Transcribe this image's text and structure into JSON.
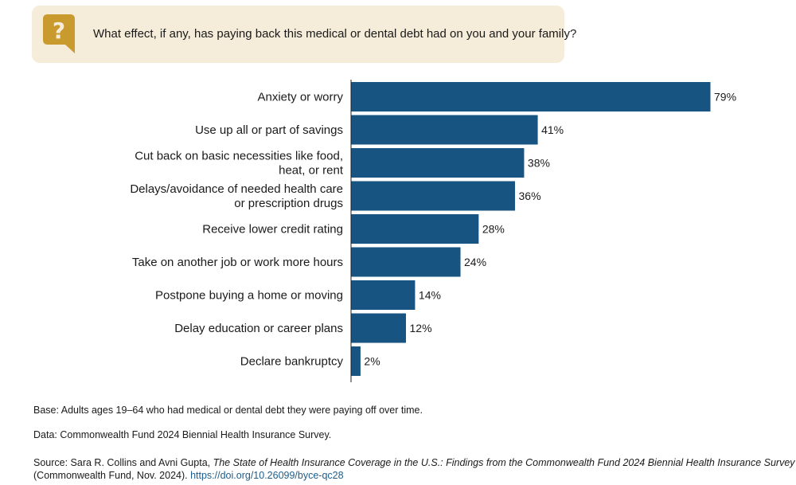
{
  "question": {
    "icon": "question-mark-icon",
    "text": "What effect, if any, has paying back this medical or dental debt had on you and your family?"
  },
  "colors": {
    "bar": "#175482",
    "question_bg": "#f5ecd9",
    "icon": "#c99a2e"
  },
  "chart_data": {
    "type": "bar",
    "orientation": "horizontal",
    "title": "What effect, if any, has paying back this medical or dental debt had on you and your family?",
    "categories": [
      [
        "Anxiety or worry"
      ],
      [
        "Use up all or part of savings"
      ],
      [
        "Cut back on basic necessities like food,",
        "heat, or rent"
      ],
      [
        "Delays/avoidance of needed health care",
        "or prescription drugs"
      ],
      [
        "Receive lower credit rating"
      ],
      [
        "Take on another job or work more hours"
      ],
      [
        "Postpone buying a home or moving"
      ],
      [
        "Delay education or career plans"
      ],
      [
        "Declare bankruptcy"
      ]
    ],
    "values": [
      79,
      41,
      38,
      36,
      28,
      24,
      14,
      12,
      2
    ],
    "value_suffix": "%",
    "xlim": [
      0,
      79
    ]
  },
  "notes": {
    "base": "Base: Adults ages 19–64 who had medical or dental debt they were paying off over time.",
    "data": "Data: Commonwealth Fund 2024 Biennial Health Insurance Survey.",
    "source_prefix": "Source: Sara R. Collins and Avni Gupta, ",
    "source_title": "The State of Health Insurance Coverage in the U.S.: Findings from the Commonwealth Fund 2024 Biennial Health Insurance Survey",
    "source_suffix": "(Commonwealth Fund, Nov. 2024). ",
    "source_link": "https://doi.org/10.26099/byce-qc28"
  }
}
